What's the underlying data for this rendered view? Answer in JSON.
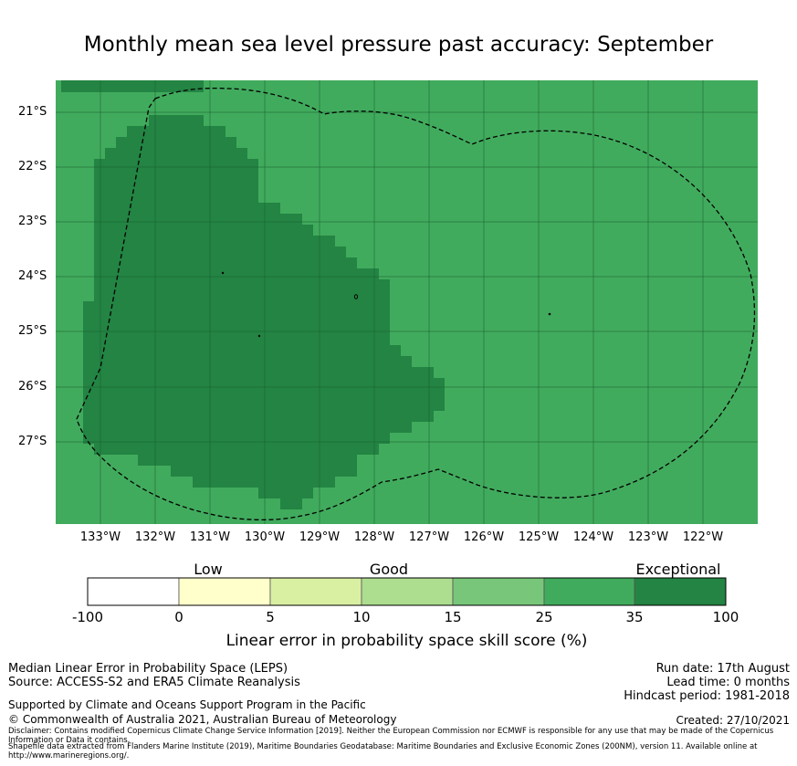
{
  "title": "Monthly mean sea level pressure past accuracy: September",
  "map": {
    "lat_labels": [
      "21°S",
      "22°S",
      "23°S",
      "24°S",
      "25°S",
      "26°S",
      "27°S"
    ],
    "lon_labels": [
      "133°W",
      "132°W",
      "131°W",
      "130°W",
      "129°W",
      "128°W",
      "127°W",
      "126°W",
      "125°W",
      "124°W",
      "123°W",
      "122°W"
    ],
    "colors": {
      "good_high": "#41ab5d",
      "exceptional": "#238443",
      "grid": "#1a5e2f",
      "boundary": "#000000"
    }
  },
  "colorbar": {
    "categories": [
      "Low",
      "Good",
      "Exceptional"
    ],
    "ticks": [
      "-100",
      "0",
      "5",
      "10",
      "15",
      "25",
      "35",
      "100"
    ],
    "colors": [
      "#ffffff",
      "#ffffcc",
      "#d9f0a3",
      "#addd8e",
      "#78c679",
      "#41ab5d",
      "#238443"
    ],
    "label": "Linear error in probability space skill score (%)"
  },
  "footer": {
    "line1": "Median Linear Error in Probability Space (LEPS)",
    "line2": "Source: ACCESS-S2 and ERA5 Climate Reanalysis",
    "support": "Supported by Climate and Oceans Support Program in the Pacific",
    "copyright": "© Commonwealth of Australia 2021, Australian Bureau of Meteorology",
    "run_date": "Run date: 17th August",
    "lead_time": "Lead time: 0 months",
    "hindcast": "Hindcast period: 1981-2018",
    "created": "Created: 27/10/2021",
    "disclaimer1": "Disclaimer: Contains modified Copernicus Climate Change Service Information [2019]. Neither the European Commission nor ECMWF is responsible for any use that may be made of the Copernicus Information or Data it contains.",
    "disclaimer2": "Shapefile data extracted from Flanders Marine Institute (2019), Maritime Boundaries Geodatabase: Maritime Boundaries and Exclusive Economic Zones (200NM), version 11. Available online at http://www.marineregions.org/."
  }
}
